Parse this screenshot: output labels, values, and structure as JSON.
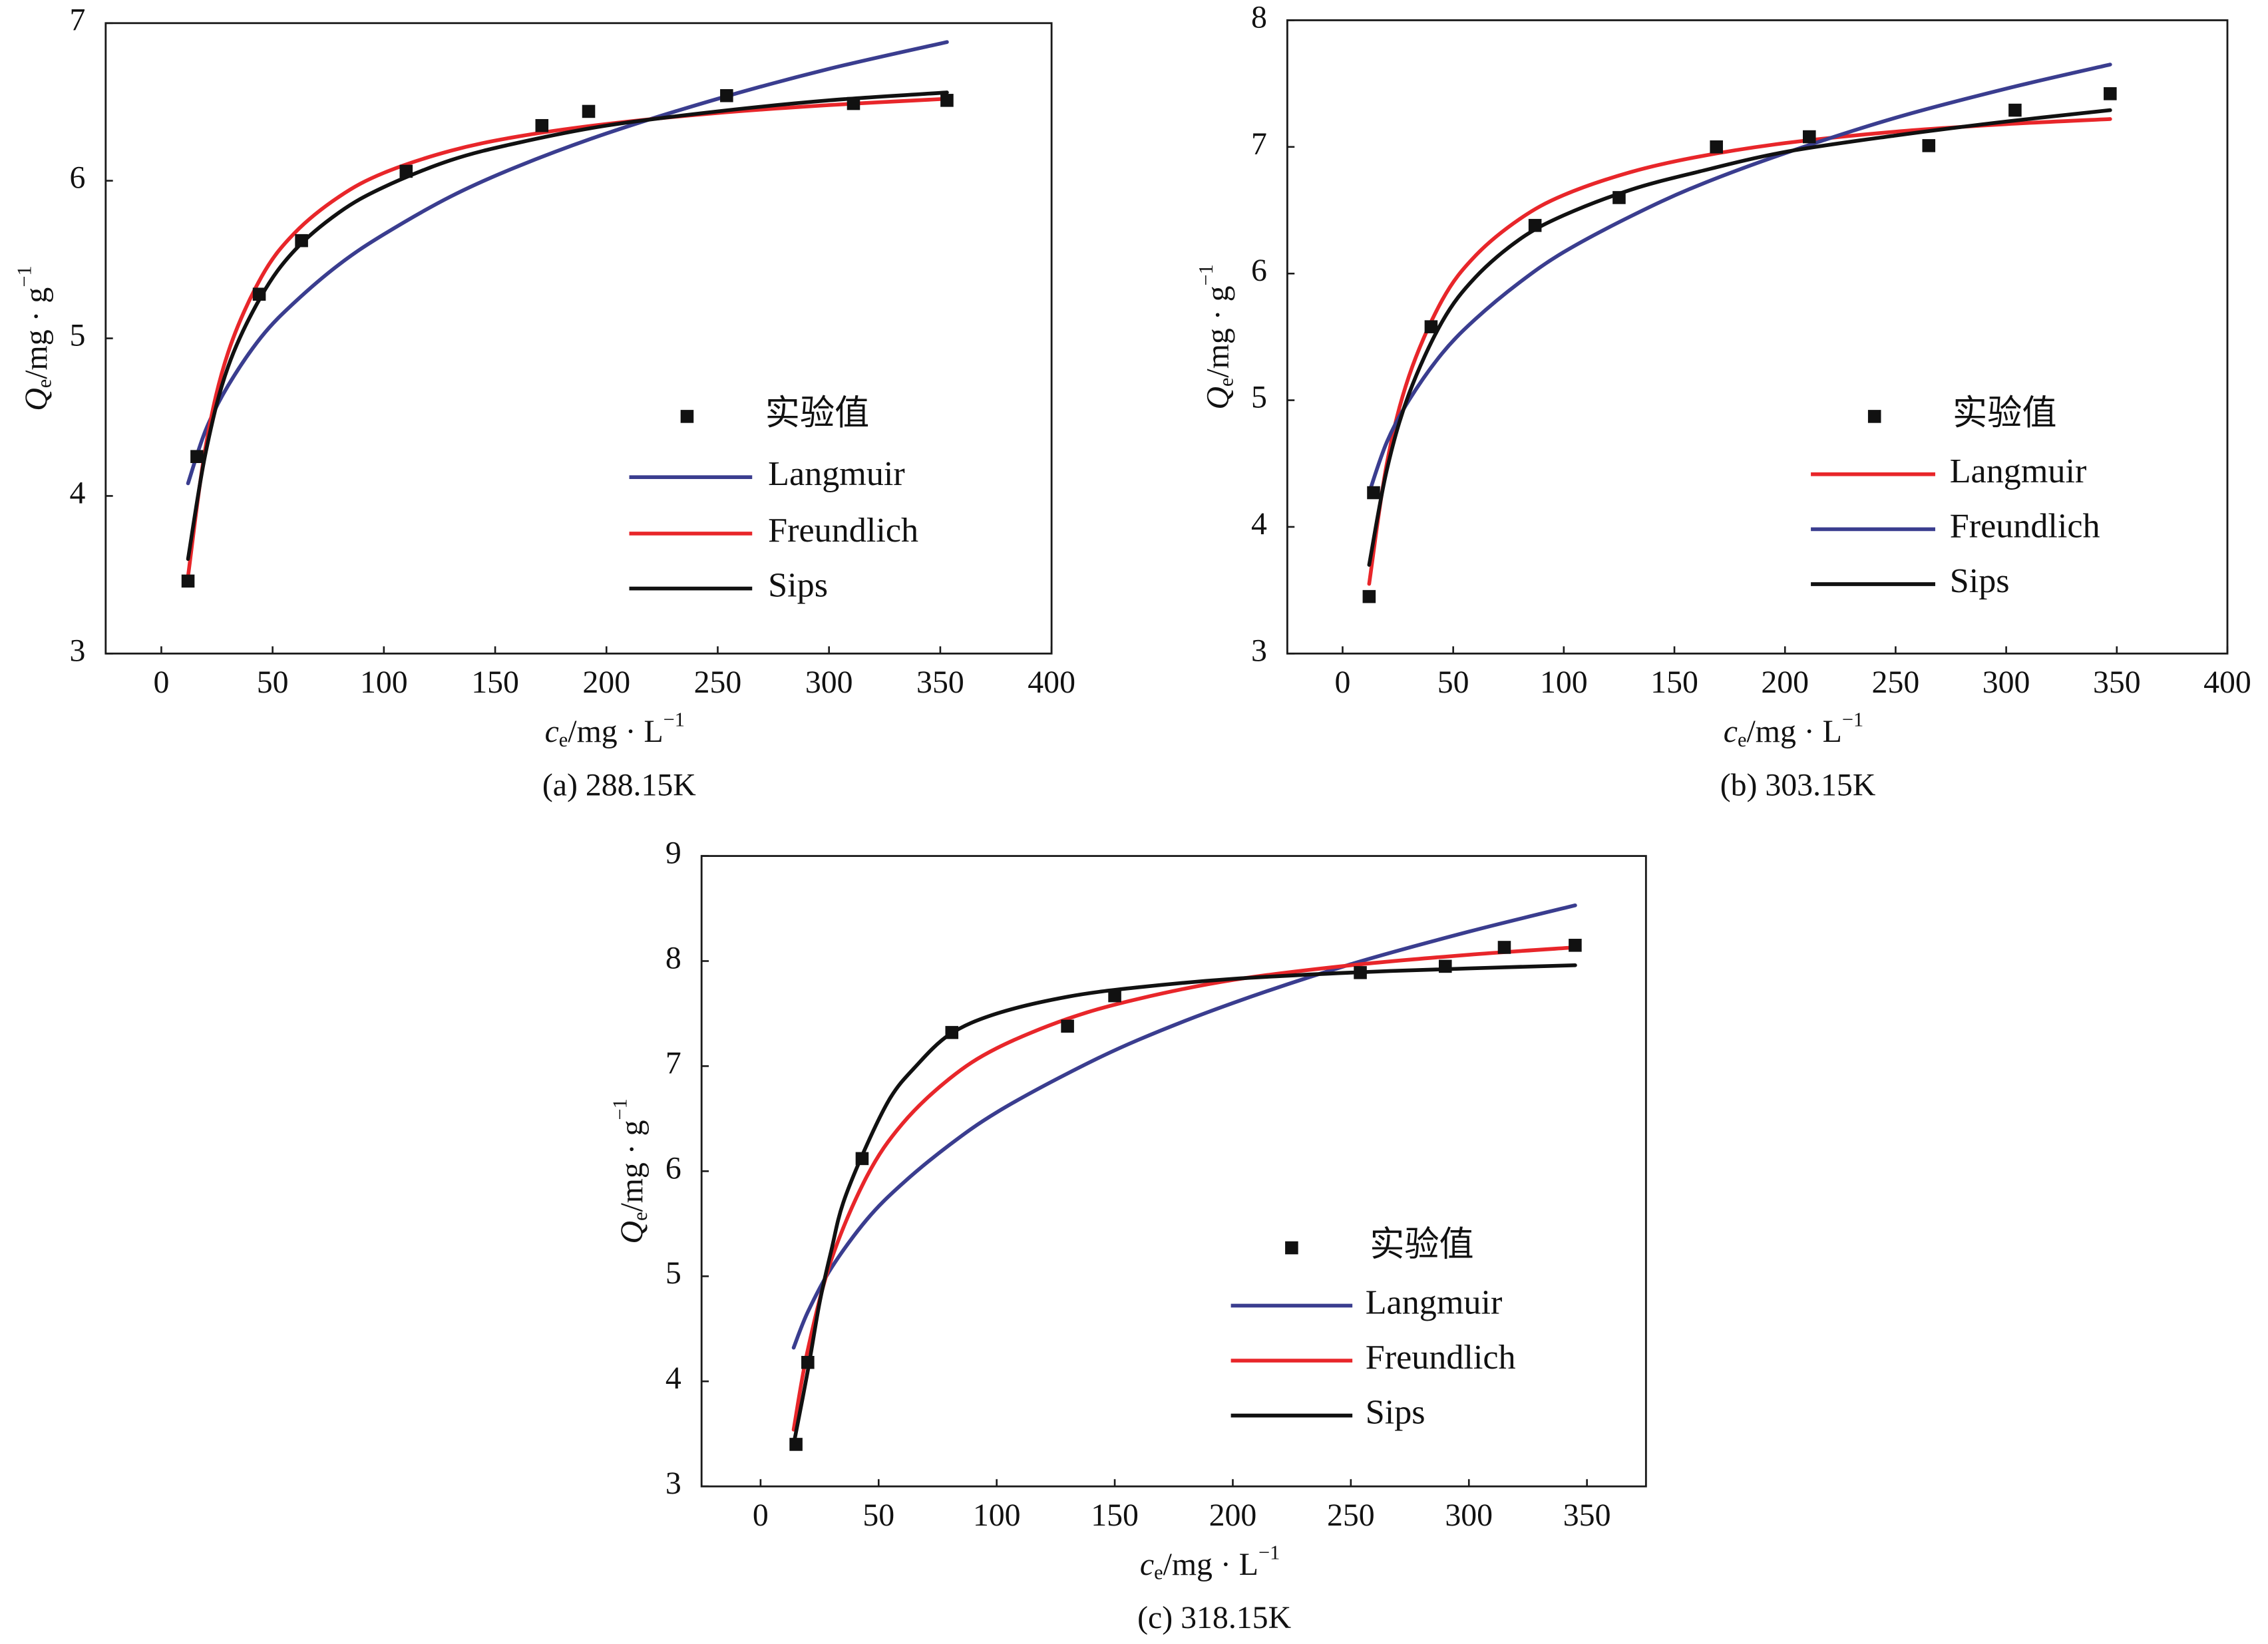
{
  "chart_data": [
    {
      "panel": "a",
      "type": "line",
      "caption": "(a) 288.15K",
      "xlabel": {
        "symbol": "c",
        "subscript": "e",
        "unit": "/mg · L",
        "superscript": "−1"
      },
      "ylabel": {
        "symbol": "Q",
        "subscript": "e",
        "unit": "/mg · g",
        "superscript": "−1"
      },
      "xlim": [
        -25,
        400
      ],
      "ylim": [
        3,
        7
      ],
      "xticks": [
        0,
        50,
        100,
        150,
        200,
        250,
        300,
        350,
        400
      ],
      "yticks": [
        3,
        4,
        5,
        6,
        7
      ],
      "grid": false,
      "legend_position": "center-right",
      "series": [
        {
          "name": "实验值",
          "kind": "scatter",
          "color": "#111111",
          "x": [
            12,
            16,
            44,
            63,
            110,
            171,
            192,
            254,
            311,
            353
          ],
          "y": [
            3.46,
            4.25,
            5.28,
            5.62,
            6.06,
            6.35,
            6.44,
            6.54,
            6.49,
            6.51
          ]
        },
        {
          "name": "Langmuir",
          "kind": "line",
          "color": "#3a3d8f",
          "x": [
            12,
            20,
            30,
            45,
            60,
            80,
            100,
            130,
            160,
            200,
            250,
            300,
            353
          ],
          "y": [
            4.08,
            4.42,
            4.7,
            5.01,
            5.23,
            5.47,
            5.66,
            5.9,
            6.09,
            6.3,
            6.52,
            6.71,
            6.88
          ]
        },
        {
          "name": "Freundlich",
          "kind": "line",
          "color": "#e8262a",
          "x": [
            12,
            20,
            30,
            45,
            60,
            80,
            100,
            130,
            160,
            200,
            250,
            300,
            353
          ],
          "y": [
            3.49,
            4.32,
            4.91,
            5.39,
            5.67,
            5.9,
            6.05,
            6.19,
            6.28,
            6.36,
            6.43,
            6.48,
            6.52
          ]
        },
        {
          "name": "Sips",
          "kind": "line",
          "color": "#111111",
          "x": [
            12,
            20,
            30,
            45,
            60,
            80,
            100,
            130,
            160,
            200,
            250,
            300,
            353
          ],
          "y": [
            3.6,
            4.28,
            4.82,
            5.27,
            5.56,
            5.8,
            5.96,
            6.13,
            6.24,
            6.35,
            6.44,
            6.51,
            6.56
          ]
        }
      ]
    },
    {
      "panel": "b",
      "type": "line",
      "caption": "(b) 303.15K",
      "xlabel": {
        "symbol": "c",
        "subscript": "e",
        "unit": "/mg · L",
        "superscript": "−1"
      },
      "ylabel": {
        "symbol": "Q",
        "subscript": "e",
        "unit": "/mg · g",
        "superscript": "−1"
      },
      "xlim": [
        -25,
        400
      ],
      "ylim": [
        3,
        8
      ],
      "xticks": [
        0,
        50,
        100,
        150,
        200,
        250,
        300,
        350,
        400
      ],
      "yticks": [
        3,
        4,
        5,
        6,
        7,
        8
      ],
      "grid": false,
      "legend_position": "center-right",
      "series": [
        {
          "name": "实验值",
          "kind": "scatter",
          "color": "#111111",
          "x": [
            12,
            14,
            40,
            87,
            125,
            169,
            211,
            265,
            304,
            347
          ],
          "y": [
            3.45,
            4.27,
            5.58,
            6.38,
            6.6,
            7.0,
            7.08,
            7.01,
            7.29,
            7.42
          ]
        },
        {
          "name": "Langmuir",
          "kind": "line",
          "color": "#e8262a",
          "x": [
            12,
            20,
            30,
            45,
            60,
            80,
            100,
            130,
            160,
            200,
            250,
            300,
            347
          ],
          "y": [
            3.55,
            4.5,
            5.19,
            5.79,
            6.14,
            6.43,
            6.62,
            6.8,
            6.92,
            7.03,
            7.12,
            7.18,
            7.22
          ]
        },
        {
          "name": "Freundlich",
          "kind": "line",
          "color": "#3a3d8f",
          "x": [
            12,
            20,
            30,
            45,
            60,
            80,
            100,
            130,
            160,
            200,
            250,
            300,
            347
          ],
          "y": [
            4.27,
            4.67,
            5.0,
            5.37,
            5.64,
            5.93,
            6.17,
            6.45,
            6.69,
            6.95,
            7.23,
            7.46,
            7.65
          ]
        },
        {
          "name": "Sips",
          "kind": "line",
          "color": "#111111",
          "x": [
            12,
            20,
            30,
            45,
            60,
            80,
            100,
            130,
            160,
            200,
            250,
            300,
            347
          ],
          "y": [
            3.7,
            4.45,
            5.05,
            5.62,
            5.97,
            6.27,
            6.46,
            6.66,
            6.8,
            6.96,
            7.09,
            7.2,
            7.29
          ]
        }
      ]
    },
    {
      "panel": "c",
      "type": "line",
      "caption": "(c) 318.15K",
      "xlabel": {
        "symbol": "c",
        "subscript": "e",
        "unit": "/mg · L",
        "superscript": "−1"
      },
      "ylabel": {
        "symbol": "Q",
        "subscript": "e",
        "unit": "/mg · g",
        "superscript": "−1"
      },
      "xlim": [
        -25,
        375
      ],
      "ylim": [
        3,
        9
      ],
      "xticks": [
        0,
        50,
        100,
        150,
        200,
        250,
        300,
        350
      ],
      "yticks": [
        3,
        4,
        5,
        6,
        7,
        8,
        9
      ],
      "grid": false,
      "legend_position": "center-right",
      "series": [
        {
          "name": "实验值",
          "kind": "scatter",
          "color": "#111111",
          "x": [
            15,
            20,
            43,
            81,
            130,
            150,
            254,
            290,
            315,
            345
          ],
          "y": [
            3.4,
            4.18,
            6.12,
            7.32,
            7.38,
            7.67,
            7.89,
            7.95,
            8.13,
            8.15
          ]
        },
        {
          "name": "Langmuir",
          "kind": "line",
          "color": "#3a3d8f",
          "x": [
            14,
            20,
            30,
            45,
            60,
            80,
            100,
            130,
            160,
            200,
            250,
            300,
            345
          ],
          "y": [
            4.32,
            4.66,
            5.08,
            5.54,
            5.88,
            6.25,
            6.56,
            6.93,
            7.25,
            7.6,
            7.97,
            8.28,
            8.53
          ]
        },
        {
          "name": "Freundlich",
          "kind": "line",
          "color": "#e8262a",
          "x": [
            14,
            20,
            30,
            45,
            60,
            80,
            100,
            130,
            160,
            200,
            250,
            300,
            345
          ],
          "y": [
            3.54,
            4.3,
            5.16,
            5.95,
            6.45,
            6.88,
            7.17,
            7.45,
            7.64,
            7.82,
            7.96,
            8.06,
            8.13
          ]
        },
        {
          "name": "Sips",
          "kind": "line",
          "color": "#111111",
          "x": [
            14,
            20,
            25,
            30,
            35,
            45,
            55,
            65,
            80,
            100,
            130,
            160,
            200,
            250,
            300,
            345
          ],
          "y": [
            3.4,
            4.1,
            4.75,
            5.25,
            5.7,
            6.25,
            6.7,
            6.98,
            7.3,
            7.5,
            7.66,
            7.75,
            7.83,
            7.89,
            7.93,
            7.96
          ]
        }
      ]
    }
  ]
}
